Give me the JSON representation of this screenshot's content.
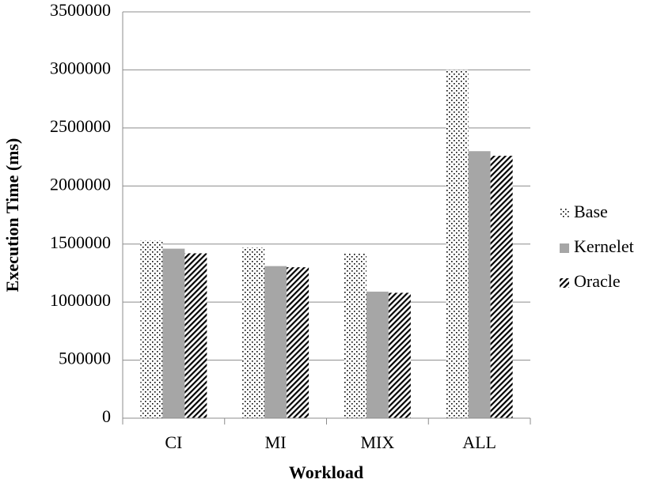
{
  "chart_data": {
    "type": "bar",
    "categories": [
      "CI",
      "MI",
      "MIX",
      "ALL"
    ],
    "series": [
      {
        "name": "Base",
        "color": "#000000",
        "pattern": "dots",
        "values": [
          1530000,
          1470000,
          1420000,
          3000000
        ]
      },
      {
        "name": "Kernelet",
        "color": "#a6a6a6",
        "pattern": "solid",
        "values": [
          1460000,
          1310000,
          1090000,
          2300000
        ]
      },
      {
        "name": "Oracle",
        "color": "#000000",
        "pattern": "diagonal",
        "values": [
          1420000,
          1300000,
          1080000,
          2260000
        ]
      }
    ],
    "x_label": "Workload",
    "y_label": "Execution Time (ms)",
    "ylim": [
      0,
      3500000
    ],
    "yticks": [
      0,
      500000,
      1000000,
      1500000,
      2000000,
      2500000,
      3000000,
      3500000
    ],
    "grid": true,
    "legend": "right"
  }
}
